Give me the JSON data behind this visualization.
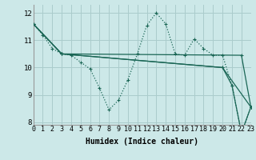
{
  "xlabel": "Humidex (Indice chaleur)",
  "background_color": "#cce8e8",
  "grid_color": "#aacccc",
  "line_color": "#1a6655",
  "dotted_series": {
    "x": [
      0,
      1,
      2,
      3,
      4,
      5,
      6,
      7,
      8,
      9,
      10,
      11,
      12,
      13,
      14,
      15,
      16,
      17,
      18,
      19,
      20,
      21,
      22,
      23
    ],
    "y": [
      11.6,
      11.2,
      10.7,
      10.5,
      10.45,
      10.2,
      9.95,
      9.25,
      8.45,
      8.8,
      9.55,
      10.5,
      11.55,
      12.0,
      11.6,
      10.5,
      10.45,
      11.05,
      10.7,
      10.45,
      10.45,
      9.35,
      7.6,
      8.55
    ]
  },
  "solid_series": [
    {
      "x": [
        0,
        3,
        22,
        23
      ],
      "y": [
        11.6,
        10.5,
        10.45,
        8.55
      ]
    },
    {
      "x": [
        0,
        3,
        20,
        23
      ],
      "y": [
        11.6,
        10.5,
        10.0,
        8.55
      ]
    },
    {
      "x": [
        0,
        3,
        20,
        21,
        22,
        23
      ],
      "y": [
        11.6,
        10.5,
        10.0,
        9.35,
        7.6,
        8.55
      ]
    }
  ],
  "ylim": [
    7.9,
    12.3
  ],
  "xlim": [
    0,
    23
  ],
  "yticks": [
    8,
    9,
    10,
    11,
    12
  ],
  "xticks": [
    0,
    1,
    2,
    3,
    4,
    5,
    6,
    7,
    8,
    9,
    10,
    11,
    12,
    13,
    14,
    15,
    16,
    17,
    18,
    19,
    20,
    21,
    22,
    23
  ],
  "xlabel_fontsize": 7,
  "tick_fontsize": 6
}
